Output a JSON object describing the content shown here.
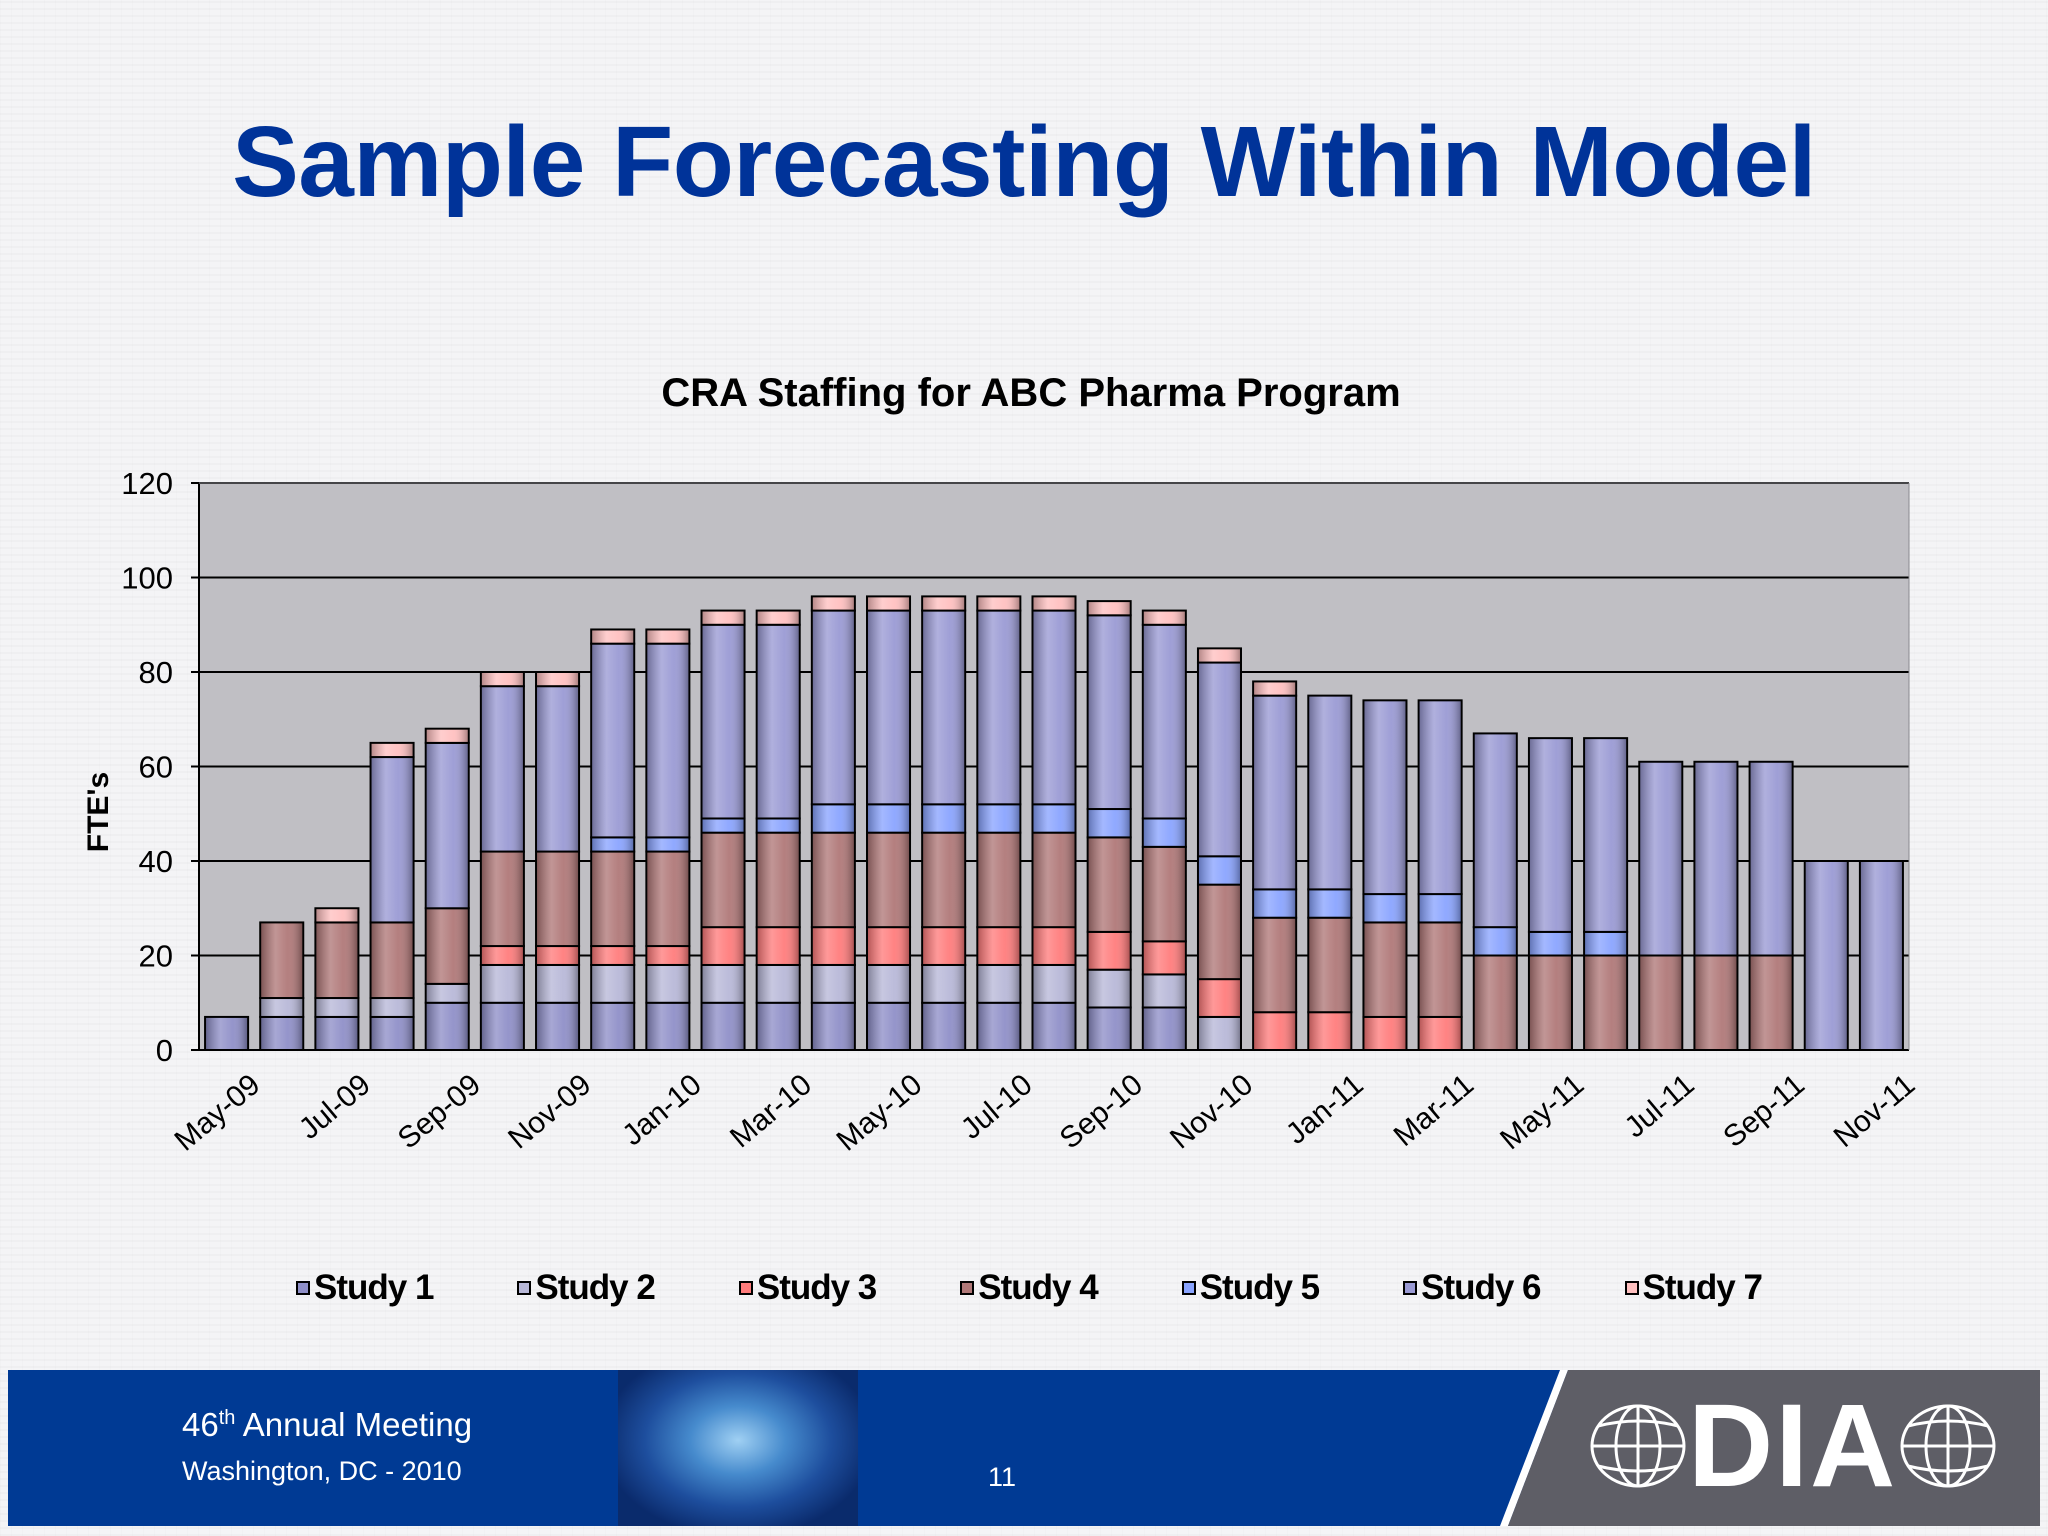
{
  "slide_title": "Sample Forecasting Within Model",
  "footer": {
    "meeting_number": "46",
    "meeting_ordinal": "th",
    "meeting_text": " Annual Meeting",
    "location": "Washington, DC - 2010",
    "page_number": "11",
    "logo_text": "DIA"
  },
  "colors": {
    "title": "#003399",
    "footer_blue": "#003a94",
    "plot_background": "#c0bfc4"
  },
  "chart_data": {
    "type": "bar",
    "stacked": true,
    "title": "CRA Staffing for ABC Pharma Program",
    "xlabel": "",
    "ylabel": "FTE's",
    "ylim": [
      0,
      120
    ],
    "yticks": [
      0,
      20,
      40,
      60,
      80,
      100,
      120
    ],
    "grid": true,
    "legend_position": "bottom",
    "categories": [
      "May-09",
      "Jun-09",
      "Jul-09",
      "Aug-09",
      "Sep-09",
      "Oct-09",
      "Nov-09",
      "Dec-09",
      "Jan-10",
      "Feb-10",
      "Mar-10",
      "Apr-10",
      "May-10",
      "Jun-10",
      "Jul-10",
      "Aug-10",
      "Sep-10",
      "Oct-10",
      "Nov-10",
      "Dec-10",
      "Jan-11",
      "Feb-11",
      "Mar-11",
      "Apr-11",
      "May-11",
      "Jun-11",
      "Jul-11",
      "Aug-11",
      "Sep-11",
      "Oct-11",
      "Nov-11"
    ],
    "tick_labels": [
      "May-09",
      "Jul-09",
      "Sep-09",
      "Nov-09",
      "Jan-10",
      "Mar-10",
      "May-10",
      "Jul-10",
      "Sep-10",
      "Nov-10",
      "Jan-11",
      "Mar-11",
      "May-11",
      "Jul-11",
      "Sep-11",
      "Nov-11"
    ],
    "series": [
      {
        "name": "Study 1",
        "color": "#8f8fc8",
        "values": [
          7,
          7,
          7,
          7,
          10,
          10,
          10,
          10,
          10,
          10,
          10,
          10,
          10,
          10,
          10,
          10,
          9,
          9,
          0,
          0,
          0,
          0,
          0,
          0,
          0,
          0,
          0,
          0,
          0,
          0,
          0
        ]
      },
      {
        "name": "Study 2",
        "color": "#b8b8d8",
        "values": [
          0,
          4,
          4,
          4,
          4,
          8,
          8,
          8,
          8,
          8,
          8,
          8,
          8,
          8,
          8,
          8,
          8,
          7,
          7,
          0,
          0,
          0,
          0,
          0,
          0,
          0,
          0,
          0,
          0,
          0,
          0
        ]
      },
      {
        "name": "Study 3",
        "color": "#ff7c7c",
        "values": [
          0,
          0,
          0,
          0,
          0,
          4,
          4,
          4,
          4,
          8,
          8,
          8,
          8,
          8,
          8,
          8,
          8,
          7,
          8,
          8,
          8,
          7,
          7,
          0,
          0,
          0,
          0,
          0,
          0,
          0,
          0
        ]
      },
      {
        "name": "Study 4",
        "color": "#b07878",
        "values": [
          0,
          16,
          16,
          16,
          16,
          20,
          20,
          20,
          20,
          20,
          20,
          20,
          20,
          20,
          20,
          20,
          20,
          20,
          20,
          20,
          20,
          20,
          20,
          20,
          20,
          20,
          20,
          20,
          20,
          0,
          0
        ]
      },
      {
        "name": "Study 5",
        "color": "#8aa4ff",
        "values": [
          0,
          0,
          0,
          0,
          0,
          0,
          0,
          3,
          3,
          3,
          3,
          6,
          6,
          6,
          6,
          6,
          6,
          6,
          6,
          6,
          6,
          6,
          6,
          6,
          5,
          5,
          0,
          0,
          0,
          0,
          0
        ]
      },
      {
        "name": "Study 6",
        "color": "#9a9ad4",
        "values": [
          0,
          0,
          0,
          35,
          35,
          35,
          35,
          41,
          41,
          41,
          41,
          41,
          41,
          41,
          41,
          41,
          41,
          41,
          41,
          41,
          41,
          41,
          41,
          41,
          41,
          41,
          41,
          41,
          41,
          40,
          40
        ]
      },
      {
        "name": "Study 7",
        "color": "#ffc0c0",
        "values": [
          0,
          0,
          3,
          3,
          3,
          3,
          3,
          3,
          3,
          3,
          3,
          3,
          3,
          3,
          3,
          3,
          3,
          3,
          3,
          3,
          0,
          0,
          0,
          0,
          0,
          0,
          0,
          0,
          0,
          0,
          0
        ]
      }
    ]
  }
}
